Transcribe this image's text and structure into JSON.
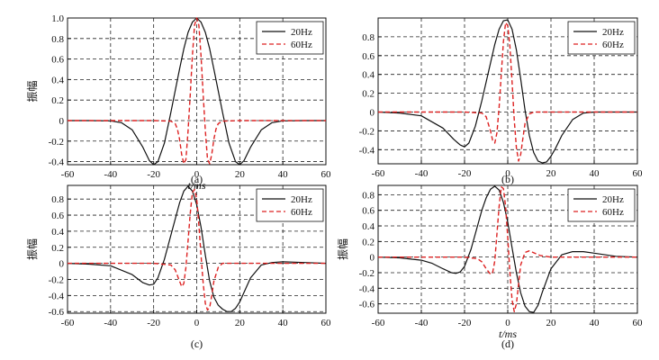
{
  "chart_data": [
    {
      "type": "line",
      "panel_label": "(a)",
      "xlabel": "t/ms",
      "ylabel": "振幅",
      "xlim": [
        -60,
        60
      ],
      "ylim": [
        -0.43,
        1.0
      ],
      "xticks": [
        -60,
        -40,
        -20,
        0,
        20,
        40,
        60
      ],
      "yticks": [
        -0.4,
        -0.2,
        0,
        0.2,
        0.4,
        0.6,
        0.8,
        1.0
      ],
      "ytick_labels": [
        "-0.4",
        "-0.2",
        "0",
        "0.2",
        "0.4",
        "0.6",
        "0.8",
        "1.0"
      ],
      "grid": true,
      "legend_position": "top-right",
      "series": [
        {
          "name": "20Hz",
          "color": "#111111",
          "dash": "solid",
          "x": [
            -60,
            -50,
            -40,
            -35,
            -30,
            -25,
            -22,
            -20,
            -18,
            -15,
            -12,
            -10,
            -8,
            -6,
            -4,
            -2,
            0,
            2,
            4,
            6,
            8,
            10,
            12,
            15,
            18,
            20,
            22,
            25,
            30,
            35,
            40,
            50,
            60
          ],
          "y": [
            0,
            0,
            -0.003,
            -0.02,
            -0.09,
            -0.26,
            -0.39,
            -0.43,
            -0.4,
            -0.22,
            0.08,
            0.29,
            0.5,
            0.7,
            0.86,
            0.96,
            1.0,
            0.96,
            0.86,
            0.7,
            0.5,
            0.29,
            0.08,
            -0.22,
            -0.4,
            -0.43,
            -0.39,
            -0.26,
            -0.09,
            -0.02,
            -0.003,
            0,
            0
          ]
        },
        {
          "name": "60Hz",
          "color": "#dd2222",
          "dash": "dashed",
          "x": [
            -60,
            -20,
            -12,
            -10,
            -9,
            -8,
            -7,
            -6,
            -5,
            -4,
            -3,
            -2,
            -1,
            0,
            1,
            2,
            3,
            4,
            5,
            6,
            7,
            8,
            9,
            10,
            12,
            20,
            60
          ],
          "y": [
            0,
            0,
            -0.005,
            -0.03,
            -0.08,
            -0.18,
            -0.33,
            -0.42,
            -0.38,
            -0.1,
            0.25,
            0.63,
            0.93,
            1.0,
            0.93,
            0.63,
            0.25,
            -0.1,
            -0.38,
            -0.42,
            -0.33,
            -0.18,
            -0.08,
            -0.03,
            -0.005,
            0,
            0
          ]
        }
      ]
    },
    {
      "type": "line",
      "panel_label": "(b)",
      "xlabel": "",
      "ylabel": "",
      "xlim": [
        -60,
        60
      ],
      "ylim": [
        -0.55,
        1.0
      ],
      "xticks": [
        -60,
        -40,
        -20,
        0,
        20,
        40,
        60
      ],
      "yticks": [
        -0.4,
        -0.2,
        0,
        0.2,
        0.4,
        0.6,
        0.8
      ],
      "ytick_labels": [
        "-0.4",
        "-0.2",
        "0",
        "0.2",
        "0.4",
        "0.6",
        "0.8"
      ],
      "grid": true,
      "legend_position": "top-right",
      "series": [
        {
          "name": "20Hz",
          "color": "#111111",
          "dash": "solid",
          "x": [
            -60,
            -50,
            -40,
            -30,
            -25,
            -22,
            -20,
            -18,
            -15,
            -12,
            -10,
            -8,
            -6,
            -4,
            -2,
            0,
            2,
            4,
            6,
            8,
            10,
            12,
            14,
            16,
            18,
            20,
            22,
            25,
            30,
            35,
            40,
            50,
            60
          ],
          "y": [
            0,
            -0.01,
            -0.04,
            -0.17,
            -0.29,
            -0.35,
            -0.37,
            -0.33,
            -0.15,
            0.12,
            0.32,
            0.52,
            0.72,
            0.88,
            0.97,
            0.98,
            0.88,
            0.66,
            0.35,
            0.02,
            -0.25,
            -0.43,
            -0.52,
            -0.54,
            -0.53,
            -0.47,
            -0.39,
            -0.25,
            -0.08,
            -0.01,
            0,
            0,
            0
          ]
        },
        {
          "name": "60Hz",
          "color": "#dd2222",
          "dash": "dashed",
          "x": [
            -60,
            -20,
            -12,
            -10,
            -8,
            -7,
            -6,
            -5,
            -4,
            -3,
            -2,
            -1,
            0,
            1,
            2,
            3,
            4,
            5,
            6,
            7,
            8,
            10,
            12,
            20,
            60
          ],
          "y": [
            0,
            0,
            -0.01,
            -0.05,
            -0.2,
            -0.3,
            -0.33,
            -0.22,
            0.05,
            0.4,
            0.75,
            0.95,
            0.92,
            0.7,
            0.32,
            -0.08,
            -0.38,
            -0.52,
            -0.45,
            -0.28,
            -0.12,
            -0.02,
            0,
            0,
            0
          ]
        }
      ]
    },
    {
      "type": "line",
      "panel_label": "(c)",
      "xlabel": "",
      "ylabel": "振幅",
      "xlim": [
        -60,
        60
      ],
      "ylim": [
        -0.62,
        0.97
      ],
      "xticks": [
        -60,
        -40,
        -20,
        0,
        20,
        40,
        60
      ],
      "yticks": [
        -0.6,
        -0.4,
        -0.2,
        0,
        0.2,
        0.4,
        0.6,
        0.8
      ],
      "ytick_labels": [
        "-0.6",
        "-0.4",
        "-0.2",
        "0",
        "0.2",
        "0.4",
        "0.6",
        "0.8"
      ],
      "grid": true,
      "legend_position": "top-right",
      "series": [
        {
          "name": "20Hz",
          "color": "#111111",
          "dash": "solid",
          "x": [
            -60,
            -50,
            -40,
            -30,
            -25,
            -22,
            -20,
            -18,
            -15,
            -12,
            -10,
            -8,
            -6,
            -4,
            -2,
            0,
            2,
            4,
            6,
            8,
            10,
            12,
            14,
            16,
            18,
            20,
            22,
            25,
            30,
            35,
            40,
            50,
            60
          ],
          "y": [
            0,
            -0.01,
            -0.03,
            -0.14,
            -0.24,
            -0.27,
            -0.26,
            -0.18,
            0.05,
            0.35,
            0.55,
            0.75,
            0.9,
            0.96,
            0.9,
            0.73,
            0.45,
            0.1,
            -0.22,
            -0.42,
            -0.52,
            -0.57,
            -0.6,
            -0.6,
            -0.56,
            -0.48,
            -0.36,
            -0.18,
            -0.02,
            0.01,
            0.02,
            0.01,
            0
          ]
        },
        {
          "name": "60Hz",
          "color": "#dd2222",
          "dash": "dashed",
          "x": [
            -60,
            -20,
            -12,
            -10,
            -8,
            -7,
            -6,
            -5,
            -4,
            -3,
            -2,
            -1,
            0,
            1,
            2,
            3,
            4,
            5,
            6,
            7,
            8,
            10,
            12,
            20,
            60
          ],
          "y": [
            0,
            0,
            -0.02,
            -0.08,
            -0.22,
            -0.29,
            -0.25,
            -0.05,
            0.28,
            0.62,
            0.88,
            0.92,
            0.8,
            0.48,
            0.1,
            -0.25,
            -0.5,
            -0.58,
            -0.55,
            -0.4,
            -0.22,
            -0.05,
            0,
            0,
            0
          ]
        }
      ]
    },
    {
      "type": "line",
      "panel_label": "(d)",
      "xlabel": "t/ms",
      "ylabel": "振幅",
      "xlim": [
        -60,
        60
      ],
      "ylim": [
        -0.72,
        0.92
      ],
      "xticks": [
        -60,
        -40,
        -20,
        0,
        20,
        40,
        60
      ],
      "yticks": [
        -0.6,
        -0.4,
        -0.2,
        0,
        0.2,
        0.4,
        0.6,
        0.8
      ],
      "ytick_labels": [
        "-0.6",
        "-0.4",
        "-0.2",
        "0",
        "0.2",
        "0.4",
        "0.6",
        "0.8"
      ],
      "grid": true,
      "legend_position": "top-right",
      "series": [
        {
          "name": "20Hz",
          "color": "#111111",
          "dash": "solid",
          "x": [
            -60,
            -50,
            -40,
            -35,
            -30,
            -26,
            -24,
            -22,
            -20,
            -17,
            -14,
            -12,
            -10,
            -8,
            -6,
            -4,
            -2,
            0,
            2,
            4,
            6,
            8,
            10,
            12,
            14,
            16,
            18,
            20,
            25,
            30,
            35,
            40,
            50,
            60
          ],
          "y": [
            0,
            -0.01,
            -0.04,
            -0.08,
            -0.15,
            -0.2,
            -0.21,
            -0.19,
            -0.12,
            0.1,
            0.4,
            0.6,
            0.76,
            0.87,
            0.91,
            0.86,
            0.7,
            0.45,
            0.12,
            -0.2,
            -0.46,
            -0.63,
            -0.7,
            -0.71,
            -0.62,
            -0.45,
            -0.3,
            -0.15,
            0.03,
            0.07,
            0.07,
            0.05,
            0.01,
            0
          ]
        },
        {
          "name": "60Hz",
          "color": "#dd2222",
          "dash": "dashed",
          "x": [
            -60,
            -20,
            -14,
            -12,
            -10,
            -8,
            -7,
            -6,
            -5,
            -4,
            -3,
            -2,
            -1,
            0,
            1,
            2,
            3,
            4,
            5,
            6,
            8,
            10,
            15,
            20,
            60
          ],
          "y": [
            0,
            0,
            -0.02,
            -0.06,
            -0.15,
            -0.22,
            -0.2,
            -0.05,
            0.3,
            0.65,
            0.9,
            0.88,
            0.65,
            0.25,
            -0.2,
            -0.55,
            -0.7,
            -0.6,
            -0.35,
            -0.1,
            0.06,
            0.08,
            0.02,
            0,
            0
          ]
        }
      ]
    }
  ]
}
